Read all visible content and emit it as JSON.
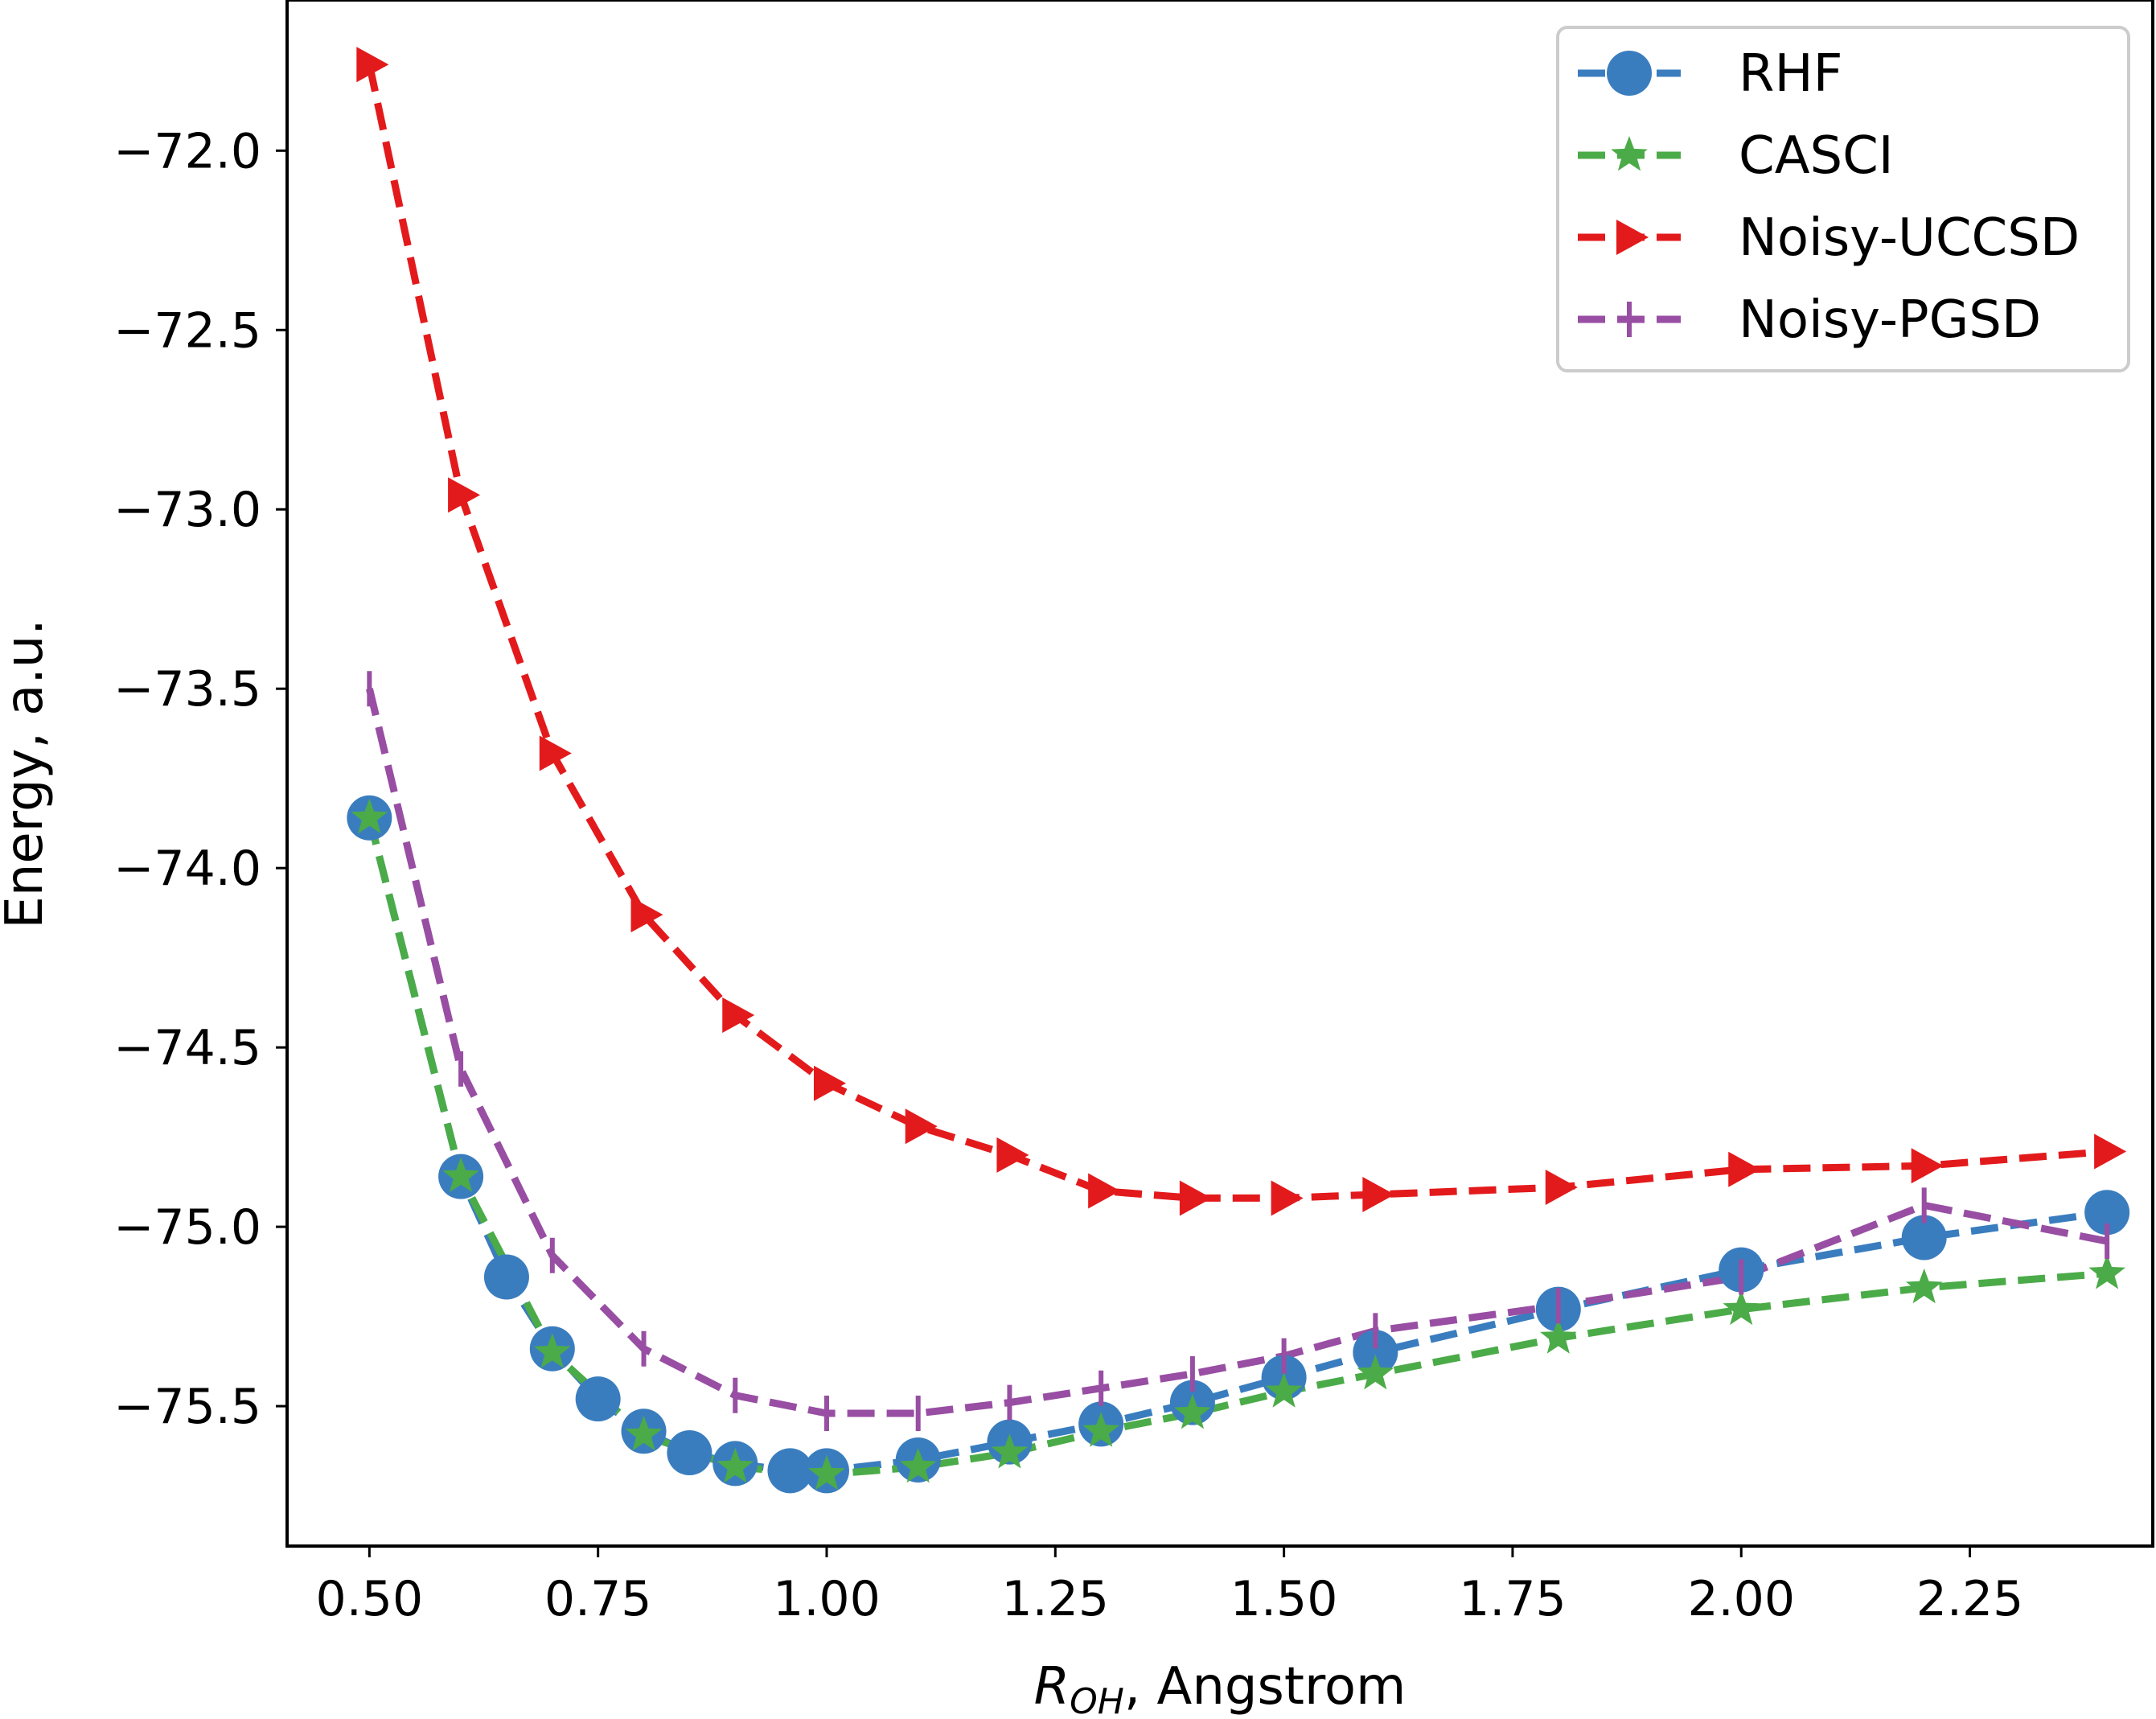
{
  "chart_data": {
    "type": "line",
    "title": "",
    "xlabel_main": "R",
    "xlabel_sub": "OH",
    "xlabel_rest": ", Angstrom",
    "ylabel": "Energy, a.u.",
    "xlim": [
      0.41,
      2.45
    ],
    "ylim": [
      -75.89,
      -71.58
    ],
    "xticks": [
      0.5,
      0.75,
      1.0,
      1.25,
      1.5,
      1.75,
      2.0,
      2.25
    ],
    "xtick_labels": [
      "0.50",
      "0.75",
      "1.00",
      "1.25",
      "1.50",
      "1.75",
      "2.00",
      "2.25"
    ],
    "yticks": [
      -72.0,
      -72.5,
      -73.0,
      -73.5,
      -74.0,
      -74.5,
      -75.0,
      -75.5
    ],
    "ytick_labels": [
      "−72.0",
      "−72.5",
      "−73.0",
      "−73.5",
      "−74.0",
      "−74.5",
      "−75.0",
      "−75.5"
    ],
    "legend_position": "top-right",
    "series": [
      {
        "name": "RHF",
        "color": "#3a7dbf",
        "marker": "circle",
        "linestyle": "dashed",
        "x": [
          0.5,
          0.6,
          0.65,
          0.7,
          0.75,
          0.8,
          0.85,
          0.9,
          0.96,
          1.0,
          1.1,
          1.2,
          1.3,
          1.4,
          1.5,
          1.6,
          1.8,
          2.0,
          2.2,
          2.4
        ],
        "y": [
          -73.86,
          -74.86,
          -75.14,
          -75.34,
          -75.48,
          -75.57,
          -75.63,
          -75.66,
          -75.68,
          -75.68,
          -75.65,
          -75.6,
          -75.55,
          -75.49,
          -75.42,
          -75.35,
          -75.23,
          -75.12,
          -75.03,
          -74.96
        ]
      },
      {
        "name": "CASCI",
        "color": "#4bab48",
        "marker": "star",
        "linestyle": "dashed",
        "x": [
          0.5,
          0.6,
          0.7,
          0.8,
          0.9,
          1.0,
          1.1,
          1.2,
          1.3,
          1.4,
          1.5,
          1.6,
          1.8,
          2.0,
          2.2,
          2.4
        ],
        "y": [
          -73.86,
          -74.86,
          -75.35,
          -75.58,
          -75.67,
          -75.69,
          -75.67,
          -75.63,
          -75.57,
          -75.52,
          -75.46,
          -75.41,
          -75.31,
          -75.23,
          -75.17,
          -75.13
        ]
      },
      {
        "name": "Noisy-UCCSD",
        "color": "#e31a1c",
        "marker": "triangle-right",
        "linestyle": "dashed",
        "x": [
          0.5,
          0.6,
          0.7,
          0.8,
          0.9,
          1.0,
          1.1,
          1.2,
          1.3,
          1.4,
          1.5,
          1.6,
          1.8,
          2.0,
          2.2,
          2.4
        ],
        "y": [
          -71.76,
          -72.96,
          -73.68,
          -74.13,
          -74.41,
          -74.6,
          -74.72,
          -74.8,
          -74.9,
          -74.92,
          -74.92,
          -74.91,
          -74.89,
          -74.84,
          -74.83,
          -74.79
        ]
      },
      {
        "name": "Noisy-PGSD",
        "color": "#984ea3",
        "marker": "vline",
        "linestyle": "dashed",
        "x": [
          0.5,
          0.6,
          0.7,
          0.8,
          0.9,
          1.0,
          1.1,
          1.2,
          1.3,
          1.4,
          1.5,
          1.6,
          1.8,
          2.0,
          2.2,
          2.4
        ],
        "y": [
          -73.5,
          -74.56,
          -75.08,
          -75.34,
          -75.47,
          -75.52,
          -75.52,
          -75.49,
          -75.45,
          -75.41,
          -75.36,
          -75.29,
          -75.22,
          -75.14,
          -74.94,
          -75.04
        ]
      }
    ]
  }
}
